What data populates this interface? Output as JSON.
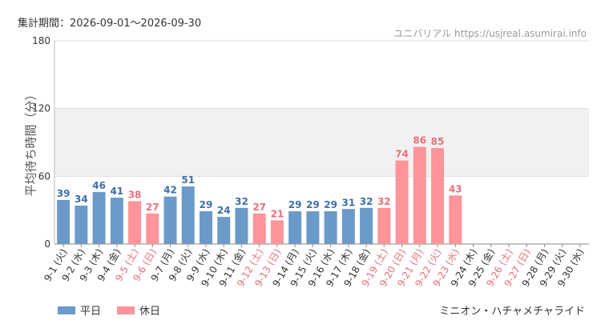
{
  "header": {
    "period": "集計期間：2026-09-01～2026-09-30",
    "source": "ユニバリアル https://usjreal.asumirai.info"
  },
  "footer": {
    "attraction": "ミニオン・ハチャメチャライド"
  },
  "legend": [
    {
      "label": "平日",
      "color": "#6b9ac8"
    },
    {
      "label": "休日",
      "color": "#ff949a"
    }
  ],
  "colors": {
    "weekday_bar": "#6b9ac8",
    "holiday_bar": "#ff949a",
    "weekday_text": "#3d6fa8",
    "holiday_text": "#e8707a",
    "band": "#f1f1f1"
  },
  "chart_data": {
    "type": "bar",
    "ylabel": "平均待ち時間（分）",
    "ylim": [
      0,
      180
    ],
    "yticks": [
      0,
      60,
      120,
      180
    ],
    "grid": true,
    "legend_position": "bottom-left",
    "categories": [
      "9-1 (火)",
      "9-2 (水)",
      "9-3 (木)",
      "9-4 (金)",
      "9-5 (土)",
      "9-6 (日)",
      "9-7 (月)",
      "9-8 (火)",
      "9-9 (水)",
      "9-10 (木)",
      "9-11 (金)",
      "9-12 (土)",
      "9-13 (日)",
      "9-14 (月)",
      "9-15 (火)",
      "9-16 (水)",
      "9-17 (木)",
      "9-18 (金)",
      "9-19 (土)",
      "9-20 (日)",
      "9-21 (月)",
      "9-22 (火)",
      "9-23 (水)",
      "9-24 (木)",
      "9-25 (金)",
      "9-26 (土)",
      "9-27 (日)",
      "9-28 (月)",
      "9-29 (火)",
      "9-30 (水)"
    ],
    "day_type": [
      "平日",
      "平日",
      "平日",
      "平日",
      "休日",
      "休日",
      "平日",
      "平日",
      "平日",
      "平日",
      "平日",
      "休日",
      "休日",
      "平日",
      "平日",
      "平日",
      "平日",
      "平日",
      "休日",
      "休日",
      "休日",
      "休日",
      "休日",
      "平日",
      "平日",
      "休日",
      "休日",
      "平日",
      "平日",
      "平日"
    ],
    "values": [
      39,
      34,
      46,
      41,
      38,
      27,
      42,
      51,
      29,
      24,
      32,
      27,
      21,
      29,
      29,
      29,
      31,
      32,
      32,
      74,
      86,
      85,
      43,
      null,
      null,
      null,
      null,
      null,
      null,
      null
    ]
  }
}
